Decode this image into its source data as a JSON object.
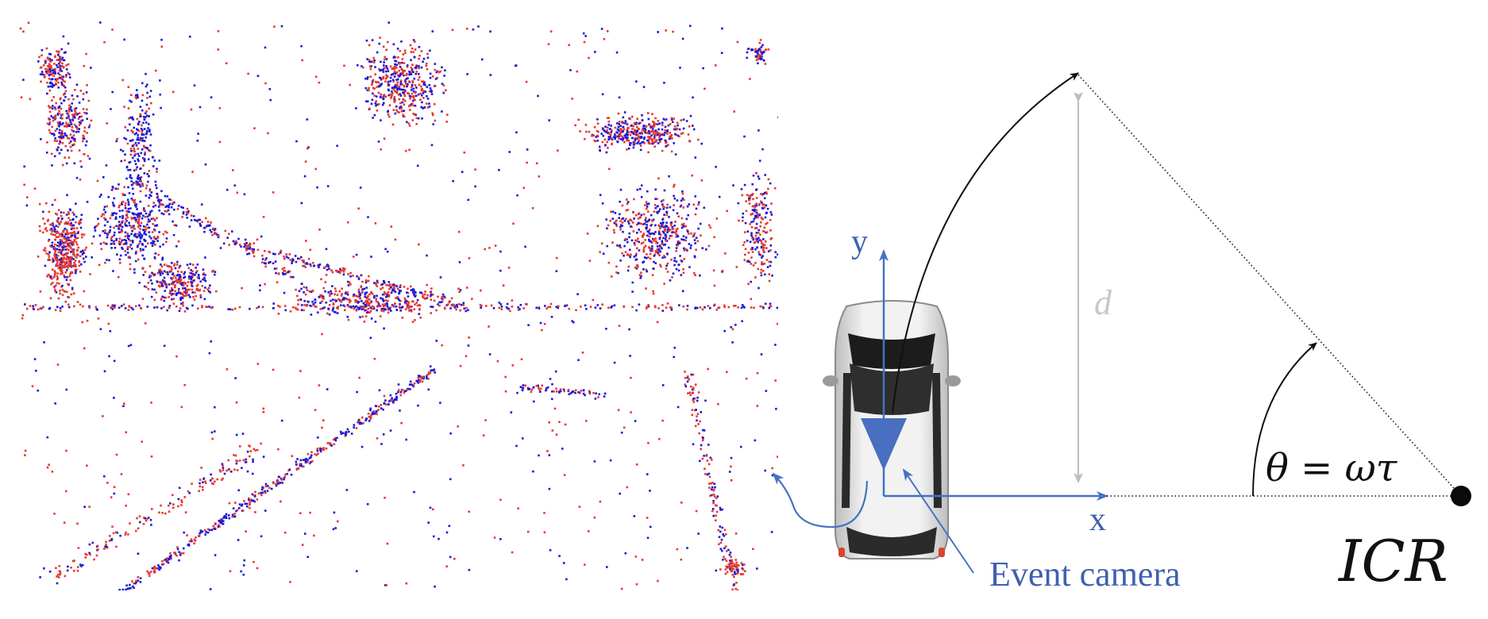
{
  "diagram": {
    "axis_y_label": "y",
    "axis_x_label": "x",
    "distance_label": "d",
    "angle_label": "θ = ωτ",
    "icr_label": "ICR",
    "camera_label": "Event camera"
  },
  "event_frame": {
    "positive_color": "#e8392e",
    "negative_color": "#1a1ad6",
    "background": "#ffffff"
  },
  "colors": {
    "axis_blue": "#4472c4",
    "label_blue": "#3f60b0",
    "distance_gray": "#bdbdbd",
    "arrow_black": "#111111"
  }
}
